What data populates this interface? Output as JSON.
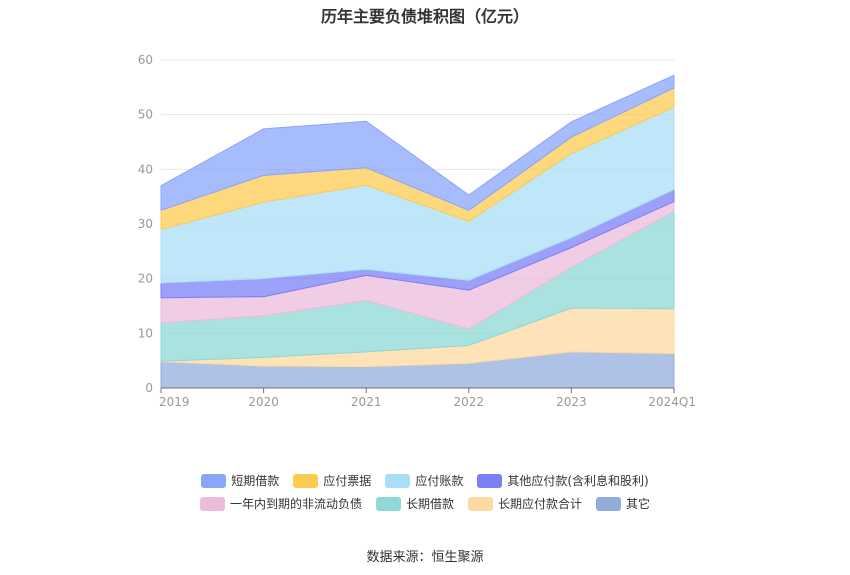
{
  "chart_data": {
    "type": "area",
    "stacked": true,
    "title": "历年主要负债堆积图（亿元）",
    "x": [
      "2019",
      "2020",
      "2021",
      "2022",
      "2023",
      "2024Q1"
    ],
    "yticks": [
      0,
      10,
      20,
      30,
      40,
      50,
      60
    ],
    "ylim": [
      0,
      60
    ],
    "grid": true,
    "legend_position": "bottom",
    "series": [
      {
        "name": "其它",
        "color": "#91aedb",
        "values": [
          4.8,
          4.0,
          3.9,
          4.5,
          6.6,
          6.3
        ]
      },
      {
        "name": "长期应付款合计",
        "color": "#fdd9a1",
        "values": [
          0.1,
          1.6,
          2.7,
          3.3,
          8.0,
          8.2
        ]
      },
      {
        "name": "长期借款",
        "color": "#8ed8d5",
        "values": [
          7.0,
          7.6,
          9.4,
          3.0,
          7.5,
          17.8
        ]
      },
      {
        "name": "一年内到期的非流动负债",
        "color": "#ebbcdb",
        "values": [
          4.6,
          3.5,
          4.6,
          7.1,
          3.6,
          1.8
        ]
      },
      {
        "name": "其他应付款(含利息和股利)",
        "color": "#7b80f7",
        "values": [
          2.7,
          3.3,
          1.1,
          1.8,
          1.8,
          2.2
        ]
      },
      {
        "name": "应付账款",
        "color": "#a9def7",
        "values": [
          9.8,
          14.0,
          15.4,
          10.8,
          15.4,
          15.1
        ]
      },
      {
        "name": "应付票据",
        "color": "#fccb52",
        "values": [
          3.5,
          4.9,
          3.2,
          2.0,
          3.0,
          3.5
        ]
      },
      {
        "name": "短期借款",
        "color": "#8aa6fb",
        "values": [
          4.5,
          8.5,
          8.5,
          2.8,
          2.8,
          2.3
        ]
      }
    ]
  },
  "legend_rows": [
    [
      {
        "label": "短期借款",
        "color": "#8aa6fb"
      },
      {
        "label": "应付票据",
        "color": "#fccb52"
      },
      {
        "label": "应付账款",
        "color": "#a9def7"
      },
      {
        "label": "其他应付款(含利息和股利)",
        "color": "#7b80f7"
      }
    ],
    [
      {
        "label": "一年内到期的非流动负债",
        "color": "#ebbcdb"
      },
      {
        "label": "长期借款",
        "color": "#8ed8d5"
      },
      {
        "label": "长期应付款合计",
        "color": "#fdd9a1"
      },
      {
        "label": "其它",
        "color": "#91aedb"
      }
    ]
  ],
  "source": "数据来源：恒生聚源"
}
